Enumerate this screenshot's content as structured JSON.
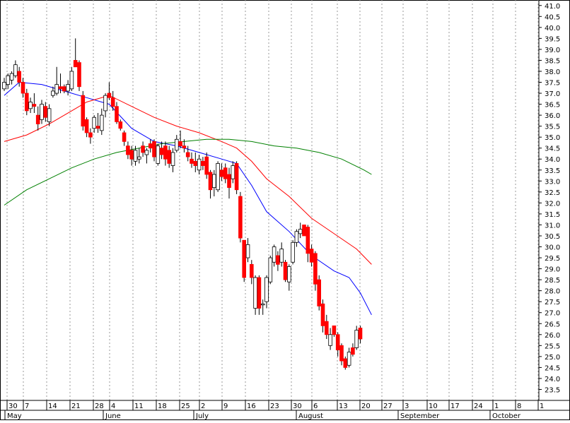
{
  "chart_data": {
    "type": "candlestick",
    "y_axis": {
      "min": 23.0,
      "max": 41.25,
      "step": 0.5,
      "position": "right",
      "ticks": [
        "23.5",
        "24.0",
        "24.5",
        "25.0",
        "25.5",
        "26.0",
        "26.5",
        "27.0",
        "27.5",
        "28.0",
        "28.5",
        "29.0",
        "29.5",
        "30.0",
        "30.5",
        "31.0",
        "31.5",
        "32.0",
        "32.5",
        "33.0",
        "33.5",
        "34.0",
        "34.5",
        "35.0",
        "35.5",
        "36.0",
        "36.5",
        "37.0",
        "37.5",
        "38.0",
        "38.5",
        "39.0",
        "39.5",
        "40.0",
        "40.5",
        "41.0"
      ]
    },
    "x_axis": {
      "day_labels": [
        "30",
        "7",
        "14",
        "21",
        "28",
        "4",
        "11",
        "18",
        "25",
        "2",
        "9",
        "16",
        "23",
        "30",
        "6",
        "13",
        "20",
        "27",
        "3",
        "10",
        "17",
        "24",
        "1",
        "8",
        "1"
      ],
      "month_labels": [
        "May",
        "June",
        "July",
        "August",
        "September",
        "October"
      ]
    },
    "grid": "vertical dashed at weekly ticks",
    "colors": {
      "up": "#ffffff",
      "down": "#ff0000",
      "outline": "#000000",
      "ma_short": "#0000ff",
      "ma_mid": "#ff0000",
      "ma_long": "#008000"
    },
    "candles": [
      {
        "o": 37.2,
        "h": 37.7,
        "l": 37.1,
        "c": 37.5
      },
      {
        "o": 37.4,
        "h": 37.9,
        "l": 37.2,
        "c": 37.8
      },
      {
        "o": 37.6,
        "h": 38.0,
        "l": 37.4,
        "c": 37.9
      },
      {
        "o": 37.8,
        "h": 38.5,
        "l": 37.7,
        "c": 38.3
      },
      {
        "o": 38.0,
        "h": 38.2,
        "l": 37.3,
        "c": 37.5
      },
      {
        "o": 37.5,
        "h": 37.7,
        "l": 36.8,
        "c": 37.0
      },
      {
        "o": 37.0,
        "h": 37.2,
        "l": 36.0,
        "c": 36.2
      },
      {
        "o": 36.3,
        "h": 36.8,
        "l": 36.1,
        "c": 36.6
      },
      {
        "o": 36.5,
        "h": 37.0,
        "l": 36.1,
        "c": 36.4
      },
      {
        "o": 36.0,
        "h": 36.4,
        "l": 35.3,
        "c": 35.6
      },
      {
        "o": 35.8,
        "h": 36.7,
        "l": 35.6,
        "c": 36.5
      },
      {
        "o": 36.4,
        "h": 36.6,
        "l": 35.7,
        "c": 35.9
      },
      {
        "o": 35.7,
        "h": 36.5,
        "l": 35.5,
        "c": 36.3
      },
      {
        "o": 36.9,
        "h": 37.3,
        "l": 36.8,
        "c": 37.1
      },
      {
        "o": 37.0,
        "h": 38.2,
        "l": 36.9,
        "c": 37.4
      },
      {
        "o": 37.3,
        "h": 37.9,
        "l": 37.0,
        "c": 37.2
      },
      {
        "o": 37.3,
        "h": 37.4,
        "l": 37.0,
        "c": 37.1
      },
      {
        "o": 37.1,
        "h": 37.6,
        "l": 36.9,
        "c": 37.4
      },
      {
        "o": 37.2,
        "h": 38.2,
        "l": 37.1,
        "c": 38.0
      },
      {
        "o": 38.5,
        "h": 39.5,
        "l": 38.3,
        "c": 38.2
      },
      {
        "o": 38.4,
        "h": 38.5,
        "l": 37.1,
        "c": 37.3
      },
      {
        "o": 36.9,
        "h": 37.1,
        "l": 35.3,
        "c": 35.5
      },
      {
        "o": 35.8,
        "h": 35.9,
        "l": 35.0,
        "c": 35.2
      },
      {
        "o": 35.2,
        "h": 35.4,
        "l": 34.7,
        "c": 35.0
      },
      {
        "o": 35.4,
        "h": 36.0,
        "l": 35.2,
        "c": 35.9
      },
      {
        "o": 35.5,
        "h": 36.1,
        "l": 35.2,
        "c": 35.4
      },
      {
        "o": 35.3,
        "h": 36.3,
        "l": 35.1,
        "c": 36.0
      },
      {
        "o": 36.2,
        "h": 37.0,
        "l": 35.9,
        "c": 36.9
      },
      {
        "o": 37.0,
        "h": 37.5,
        "l": 36.7,
        "c": 36.8
      },
      {
        "o": 36.8,
        "h": 37.1,
        "l": 36.2,
        "c": 36.4
      },
      {
        "o": 36.4,
        "h": 36.6,
        "l": 35.6,
        "c": 35.7
      },
      {
        "o": 35.7,
        "h": 35.8,
        "l": 35.3,
        "c": 35.4
      },
      {
        "o": 35.2,
        "h": 35.3,
        "l": 34.6,
        "c": 34.8
      },
      {
        "o": 34.6,
        "h": 34.8,
        "l": 34.0,
        "c": 34.2
      },
      {
        "o": 34.4,
        "h": 34.6,
        "l": 33.7,
        "c": 34.0
      },
      {
        "o": 33.9,
        "h": 34.6,
        "l": 33.7,
        "c": 34.4
      },
      {
        "o": 34.0,
        "h": 34.5,
        "l": 33.8,
        "c": 34.1
      },
      {
        "o": 34.6,
        "h": 34.8,
        "l": 34.1,
        "c": 34.3
      },
      {
        "o": 34.2,
        "h": 34.5,
        "l": 33.8,
        "c": 34.4
      },
      {
        "o": 34.7,
        "h": 34.9,
        "l": 34.3,
        "c": 34.5
      },
      {
        "o": 34.8,
        "h": 34.9,
        "l": 33.9,
        "c": 34.1
      },
      {
        "o": 33.8,
        "h": 34.7,
        "l": 33.7,
        "c": 34.6
      },
      {
        "o": 34.5,
        "h": 34.8,
        "l": 34.0,
        "c": 34.2
      },
      {
        "o": 34.6,
        "h": 34.8,
        "l": 33.7,
        "c": 34.0
      },
      {
        "o": 34.4,
        "h": 34.6,
        "l": 33.6,
        "c": 33.8
      },
      {
        "o": 33.7,
        "h": 34.5,
        "l": 33.4,
        "c": 34.3
      },
      {
        "o": 34.4,
        "h": 35.1,
        "l": 34.3,
        "c": 34.9
      },
      {
        "o": 34.8,
        "h": 35.3,
        "l": 34.5,
        "c": 34.6
      },
      {
        "o": 34.6,
        "h": 34.9,
        "l": 34.3,
        "c": 34.5
      },
      {
        "o": 34.3,
        "h": 34.6,
        "l": 33.9,
        "c": 34.1
      },
      {
        "o": 34.0,
        "h": 34.3,
        "l": 33.6,
        "c": 33.8
      },
      {
        "o": 33.9,
        "h": 34.3,
        "l": 33.4,
        "c": 33.7
      },
      {
        "o": 33.5,
        "h": 34.2,
        "l": 33.3,
        "c": 34.0
      },
      {
        "o": 33.9,
        "h": 34.1,
        "l": 33.5,
        "c": 33.7
      },
      {
        "o": 34.1,
        "h": 34.3,
        "l": 33.1,
        "c": 33.3
      },
      {
        "o": 33.4,
        "h": 33.5,
        "l": 32.2,
        "c": 32.6
      },
      {
        "o": 32.7,
        "h": 33.5,
        "l": 32.3,
        "c": 33.3
      },
      {
        "o": 32.6,
        "h": 33.9,
        "l": 32.5,
        "c": 33.8
      },
      {
        "o": 33.5,
        "h": 33.8,
        "l": 33.0,
        "c": 33.2
      },
      {
        "o": 33.6,
        "h": 33.8,
        "l": 32.9,
        "c": 33.1
      },
      {
        "o": 33.3,
        "h": 33.6,
        "l": 32.2,
        "c": 32.7
      },
      {
        "o": 33.1,
        "h": 33.9,
        "l": 32.9,
        "c": 33.7
      },
      {
        "o": 33.8,
        "h": 33.9,
        "l": 32.4,
        "c": 32.6
      },
      {
        "o": 32.3,
        "h": 32.5,
        "l": 30.2,
        "c": 30.4
      },
      {
        "o": 30.3,
        "h": 30.3,
        "l": 28.4,
        "c": 28.6
      },
      {
        "o": 29.5,
        "h": 30.4,
        "l": 29.3,
        "c": 30.1
      },
      {
        "o": 29.2,
        "h": 29.4,
        "l": 28.3,
        "c": 28.6
      },
      {
        "o": 27.2,
        "h": 28.7,
        "l": 26.9,
        "c": 28.6
      },
      {
        "o": 28.6,
        "h": 28.7,
        "l": 26.9,
        "c": 27.2
      },
      {
        "o": 27.4,
        "h": 27.6,
        "l": 26.9,
        "c": 27.4
      },
      {
        "o": 27.5,
        "h": 28.7,
        "l": 27.2,
        "c": 28.6
      },
      {
        "o": 28.4,
        "h": 29.6,
        "l": 28.3,
        "c": 29.5
      },
      {
        "o": 29.3,
        "h": 30.1,
        "l": 29.1,
        "c": 30.0
      },
      {
        "o": 29.6,
        "h": 29.8,
        "l": 28.9,
        "c": 29.2
      },
      {
        "o": 29.3,
        "h": 30.2,
        "l": 29.1,
        "c": 29.9
      },
      {
        "o": 29.3,
        "h": 29.4,
        "l": 28.4,
        "c": 28.5
      },
      {
        "o": 28.4,
        "h": 29.2,
        "l": 28.0,
        "c": 29.1
      },
      {
        "o": 29.3,
        "h": 30.3,
        "l": 29.2,
        "c": 30.2
      },
      {
        "o": 30.2,
        "h": 30.8,
        "l": 30.0,
        "c": 30.7
      },
      {
        "o": 30.6,
        "h": 31.1,
        "l": 30.4,
        "c": 30.8
      },
      {
        "o": 31.0,
        "h": 31.0,
        "l": 30.6,
        "c": 30.5
      },
      {
        "o": 30.9,
        "h": 31.0,
        "l": 29.3,
        "c": 29.7
      },
      {
        "o": 29.9,
        "h": 30.1,
        "l": 29.1,
        "c": 29.3
      },
      {
        "o": 29.7,
        "h": 29.8,
        "l": 28.0,
        "c": 28.3
      },
      {
        "o": 28.5,
        "h": 28.7,
        "l": 27.1,
        "c": 27.3
      },
      {
        "o": 27.4,
        "h": 27.6,
        "l": 26.1,
        "c": 26.4
      },
      {
        "o": 26.6,
        "h": 26.9,
        "l": 25.8,
        "c": 26.0
      },
      {
        "o": 25.5,
        "h": 26.3,
        "l": 25.3,
        "c": 26.0
      },
      {
        "o": 26.4,
        "h": 26.4,
        "l": 25.9,
        "c": 26.0
      },
      {
        "o": 26.0,
        "h": 26.1,
        "l": 25.0,
        "c": 25.3
      },
      {
        "o": 25.5,
        "h": 25.6,
        "l": 24.6,
        "c": 24.8
      },
      {
        "o": 24.9,
        "h": 25.0,
        "l": 24.4,
        "c": 24.5
      },
      {
        "o": 24.6,
        "h": 25.4,
        "l": 24.5,
        "c": 25.2
      },
      {
        "o": 25.4,
        "h": 25.6,
        "l": 25.0,
        "c": 25.1
      },
      {
        "o": 25.4,
        "h": 26.4,
        "l": 25.3,
        "c": 26.2
      },
      {
        "o": 26.3,
        "h": 26.4,
        "l": 25.6,
        "c": 25.8
      }
    ],
    "moving_averages": [
      {
        "color": "#0000ff",
        "values": [
          [
            0,
            36.9
          ],
          [
            4,
            37.5
          ],
          [
            10,
            37.4
          ],
          [
            16,
            37.1
          ],
          [
            22,
            36.8
          ],
          [
            28,
            36.5
          ],
          [
            34,
            35.4
          ],
          [
            40,
            34.8
          ],
          [
            46,
            34.6
          ],
          [
            52,
            34.3
          ],
          [
            58,
            34.0
          ],
          [
            62,
            33.8
          ],
          [
            66,
            32.8
          ],
          [
            70,
            31.6
          ],
          [
            76,
            30.7
          ],
          [
            82,
            29.6
          ],
          [
            88,
            28.9
          ],
          [
            92,
            28.6
          ],
          [
            95,
            27.9
          ],
          [
            98,
            26.9
          ]
        ]
      },
      {
        "color": "#ff0000",
        "values": [
          [
            0,
            34.8
          ],
          [
            6,
            35.1
          ],
          [
            12,
            35.6
          ],
          [
            18,
            36.2
          ],
          [
            22,
            36.6
          ],
          [
            28,
            36.9
          ],
          [
            34,
            36.4
          ],
          [
            40,
            35.9
          ],
          [
            46,
            35.5
          ],
          [
            52,
            35.2
          ],
          [
            58,
            34.8
          ],
          [
            62,
            34.5
          ],
          [
            66,
            33.9
          ],
          [
            70,
            33.1
          ],
          [
            76,
            32.3
          ],
          [
            82,
            31.3
          ],
          [
            88,
            30.6
          ],
          [
            94,
            29.9
          ],
          [
            98,
            29.2
          ]
        ]
      },
      {
        "color": "#008000",
        "values": [
          [
            0,
            31.9
          ],
          [
            6,
            32.6
          ],
          [
            12,
            33.1
          ],
          [
            18,
            33.6
          ],
          [
            24,
            34.0
          ],
          [
            30,
            34.3
          ],
          [
            36,
            34.5
          ],
          [
            42,
            34.7
          ],
          [
            48,
            34.8
          ],
          [
            54,
            34.9
          ],
          [
            60,
            34.9
          ],
          [
            66,
            34.8
          ],
          [
            72,
            34.6
          ],
          [
            78,
            34.5
          ],
          [
            84,
            34.3
          ],
          [
            90,
            34.0
          ],
          [
            96,
            33.5
          ],
          [
            98,
            33.3
          ]
        ]
      }
    ]
  }
}
